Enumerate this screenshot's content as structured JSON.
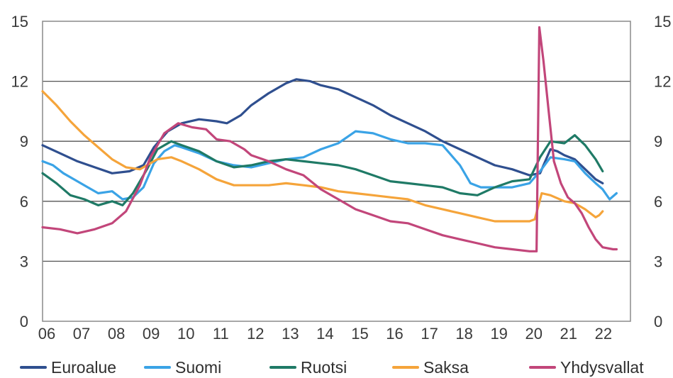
{
  "chart_data": {
    "type": "line",
    "title": "",
    "xlabel": "",
    "ylabel": "",
    "x_ticks": [
      "06",
      "07",
      "08",
      "09",
      "10",
      "11",
      "12",
      "13",
      "14",
      "15",
      "16",
      "17",
      "18",
      "19",
      "20",
      "21",
      "22"
    ],
    "y_ticks_left": [
      "15",
      "12",
      "9",
      "6",
      "3",
      "0"
    ],
    "y_ticks_right": [
      "15",
      "12",
      "9",
      "6",
      "3",
      "0"
    ],
    "ylim": [
      0,
      15
    ],
    "xlim": [
      2006,
      2022.9
    ],
    "grid": "horizontal",
    "legend_position": "bottom",
    "series": [
      {
        "name": "Euroalue",
        "color": "#2f4f8f",
        "points": [
          [
            2006.0,
            8.8
          ],
          [
            2006.5,
            8.4
          ],
          [
            2007.0,
            8.0
          ],
          [
            2007.5,
            7.7
          ],
          [
            2008.0,
            7.4
          ],
          [
            2008.5,
            7.5
          ],
          [
            2008.9,
            7.8
          ],
          [
            2009.2,
            8.7
          ],
          [
            2009.6,
            9.5
          ],
          [
            2010.0,
            9.9
          ],
          [
            2010.5,
            10.1
          ],
          [
            2011.0,
            10.0
          ],
          [
            2011.3,
            9.9
          ],
          [
            2011.7,
            10.3
          ],
          [
            2012.0,
            10.8
          ],
          [
            2012.5,
            11.4
          ],
          [
            2013.0,
            11.9
          ],
          [
            2013.3,
            12.1
          ],
          [
            2013.7,
            12.0
          ],
          [
            2014.0,
            11.8
          ],
          [
            2014.5,
            11.6
          ],
          [
            2015.0,
            11.2
          ],
          [
            2015.5,
            10.8
          ],
          [
            2016.0,
            10.3
          ],
          [
            2016.5,
            9.9
          ],
          [
            2017.0,
            9.5
          ],
          [
            2017.5,
            9.0
          ],
          [
            2018.0,
            8.6
          ],
          [
            2018.5,
            8.2
          ],
          [
            2019.0,
            7.8
          ],
          [
            2019.5,
            7.6
          ],
          [
            2020.0,
            7.3
          ],
          [
            2020.3,
            7.4
          ],
          [
            2020.6,
            8.6
          ],
          [
            2020.8,
            8.5
          ],
          [
            2021.0,
            8.3
          ],
          [
            2021.3,
            8.1
          ],
          [
            2021.6,
            7.6
          ],
          [
            2021.9,
            7.1
          ],
          [
            2022.1,
            6.9
          ]
        ]
      },
      {
        "name": "Suomi",
        "color": "#3aa3e6",
        "points": [
          [
            2006.0,
            8.0
          ],
          [
            2006.3,
            7.8
          ],
          [
            2006.6,
            7.4
          ],
          [
            2007.0,
            7.0
          ],
          [
            2007.3,
            6.7
          ],
          [
            2007.6,
            6.4
          ],
          [
            2008.0,
            6.5
          ],
          [
            2008.3,
            6.1
          ],
          [
            2008.6,
            6.2
          ],
          [
            2008.9,
            6.7
          ],
          [
            2009.2,
            7.9
          ],
          [
            2009.5,
            8.5
          ],
          [
            2009.8,
            8.8
          ],
          [
            2010.0,
            8.7
          ],
          [
            2010.5,
            8.4
          ],
          [
            2011.0,
            8.0
          ],
          [
            2011.5,
            7.8
          ],
          [
            2012.0,
            7.7
          ],
          [
            2012.5,
            7.9
          ],
          [
            2013.0,
            8.1
          ],
          [
            2013.5,
            8.2
          ],
          [
            2014.0,
            8.6
          ],
          [
            2014.5,
            8.9
          ],
          [
            2015.0,
            9.5
          ],
          [
            2015.5,
            9.4
          ],
          [
            2016.0,
            9.1
          ],
          [
            2016.5,
            8.9
          ],
          [
            2017.0,
            8.9
          ],
          [
            2017.5,
            8.8
          ],
          [
            2018.0,
            7.8
          ],
          [
            2018.3,
            6.9
          ],
          [
            2018.6,
            6.7
          ],
          [
            2019.0,
            6.7
          ],
          [
            2019.5,
            6.7
          ],
          [
            2020.0,
            6.9
          ],
          [
            2020.3,
            7.5
          ],
          [
            2020.6,
            8.2
          ],
          [
            2021.0,
            8.1
          ],
          [
            2021.3,
            8.0
          ],
          [
            2021.6,
            7.4
          ],
          [
            2021.9,
            6.9
          ],
          [
            2022.1,
            6.6
          ],
          [
            2022.3,
            6.1
          ],
          [
            2022.5,
            6.4
          ]
        ]
      },
      {
        "name": "Ruotsi",
        "color": "#1f7a66",
        "points": [
          [
            2006.0,
            7.4
          ],
          [
            2006.4,
            6.9
          ],
          [
            2006.8,
            6.3
          ],
          [
            2007.2,
            6.1
          ],
          [
            2007.6,
            5.8
          ],
          [
            2008.0,
            6.0
          ],
          [
            2008.3,
            5.8
          ],
          [
            2008.6,
            6.4
          ],
          [
            2009.0,
            7.6
          ],
          [
            2009.3,
            8.6
          ],
          [
            2009.7,
            9.0
          ],
          [
            2010.0,
            8.8
          ],
          [
            2010.5,
            8.5
          ],
          [
            2011.0,
            8.0
          ],
          [
            2011.5,
            7.7
          ],
          [
            2012.0,
            7.8
          ],
          [
            2012.5,
            8.0
          ],
          [
            2013.0,
            8.1
          ],
          [
            2013.5,
            8.0
          ],
          [
            2014.0,
            7.9
          ],
          [
            2014.5,
            7.8
          ],
          [
            2015.0,
            7.6
          ],
          [
            2015.5,
            7.3
          ],
          [
            2016.0,
            7.0
          ],
          [
            2016.5,
            6.9
          ],
          [
            2017.0,
            6.8
          ],
          [
            2017.5,
            6.7
          ],
          [
            2018.0,
            6.4
          ],
          [
            2018.5,
            6.3
          ],
          [
            2019.0,
            6.7
          ],
          [
            2019.5,
            7.0
          ],
          [
            2020.0,
            7.1
          ],
          [
            2020.3,
            8.2
          ],
          [
            2020.6,
            9.0
          ],
          [
            2021.0,
            8.9
          ],
          [
            2021.3,
            9.3
          ],
          [
            2021.6,
            8.8
          ],
          [
            2021.9,
            8.1
          ],
          [
            2022.1,
            7.5
          ]
        ]
      },
      {
        "name": "Saksa",
        "color": "#f5a43a",
        "points": [
          [
            2006.0,
            11.5
          ],
          [
            2006.4,
            10.8
          ],
          [
            2006.8,
            10.0
          ],
          [
            2007.2,
            9.3
          ],
          [
            2007.6,
            8.7
          ],
          [
            2008.0,
            8.1
          ],
          [
            2008.4,
            7.7
          ],
          [
            2008.8,
            7.6
          ],
          [
            2009.0,
            7.8
          ],
          [
            2009.3,
            8.1
          ],
          [
            2009.7,
            8.2
          ],
          [
            2010.0,
            8.0
          ],
          [
            2010.5,
            7.6
          ],
          [
            2011.0,
            7.1
          ],
          [
            2011.5,
            6.8
          ],
          [
            2012.0,
            6.8
          ],
          [
            2012.5,
            6.8
          ],
          [
            2013.0,
            6.9
          ],
          [
            2013.5,
            6.8
          ],
          [
            2014.0,
            6.7
          ],
          [
            2014.5,
            6.5
          ],
          [
            2015.0,
            6.4
          ],
          [
            2015.5,
            6.3
          ],
          [
            2016.0,
            6.2
          ],
          [
            2016.5,
            6.1
          ],
          [
            2017.0,
            5.8
          ],
          [
            2017.5,
            5.6
          ],
          [
            2018.0,
            5.4
          ],
          [
            2018.5,
            5.2
          ],
          [
            2019.0,
            5.0
          ],
          [
            2019.5,
            5.0
          ],
          [
            2020.0,
            5.0
          ],
          [
            2020.15,
            5.1
          ],
          [
            2020.35,
            6.4
          ],
          [
            2020.6,
            6.3
          ],
          [
            2021.0,
            6.0
          ],
          [
            2021.3,
            5.9
          ],
          [
            2021.6,
            5.6
          ],
          [
            2021.9,
            5.2
          ],
          [
            2022.0,
            5.3
          ],
          [
            2022.1,
            5.5
          ]
        ]
      },
      {
        "name": "Yhdysvallat",
        "color": "#c2467a",
        "points": [
          [
            2006.0,
            4.7
          ],
          [
            2006.5,
            4.6
          ],
          [
            2007.0,
            4.4
          ],
          [
            2007.5,
            4.6
          ],
          [
            2008.0,
            4.9
          ],
          [
            2008.4,
            5.5
          ],
          [
            2008.8,
            6.8
          ],
          [
            2009.1,
            8.2
          ],
          [
            2009.5,
            9.4
          ],
          [
            2009.9,
            9.9
          ],
          [
            2010.3,
            9.7
          ],
          [
            2010.7,
            9.6
          ],
          [
            2011.0,
            9.1
          ],
          [
            2011.4,
            9.0
          ],
          [
            2011.8,
            8.6
          ],
          [
            2012.0,
            8.3
          ],
          [
            2012.5,
            8.0
          ],
          [
            2013.0,
            7.6
          ],
          [
            2013.5,
            7.3
          ],
          [
            2014.0,
            6.6
          ],
          [
            2014.5,
            6.1
          ],
          [
            2015.0,
            5.6
          ],
          [
            2015.5,
            5.3
          ],
          [
            2016.0,
            5.0
          ],
          [
            2016.5,
            4.9
          ],
          [
            2017.0,
            4.6
          ],
          [
            2017.5,
            4.3
          ],
          [
            2018.0,
            4.1
          ],
          [
            2018.5,
            3.9
          ],
          [
            2019.0,
            3.7
          ],
          [
            2019.5,
            3.6
          ],
          [
            2020.0,
            3.5
          ],
          [
            2020.2,
            3.5
          ],
          [
            2020.28,
            14.7
          ],
          [
            2020.4,
            13.0
          ],
          [
            2020.55,
            10.5
          ],
          [
            2020.7,
            8.0
          ],
          [
            2020.9,
            6.9
          ],
          [
            2021.1,
            6.2
          ],
          [
            2021.3,
            5.9
          ],
          [
            2021.5,
            5.4
          ],
          [
            2021.7,
            4.7
          ],
          [
            2021.9,
            4.1
          ],
          [
            2022.1,
            3.7
          ],
          [
            2022.4,
            3.6
          ],
          [
            2022.5,
            3.6
          ]
        ]
      }
    ]
  }
}
